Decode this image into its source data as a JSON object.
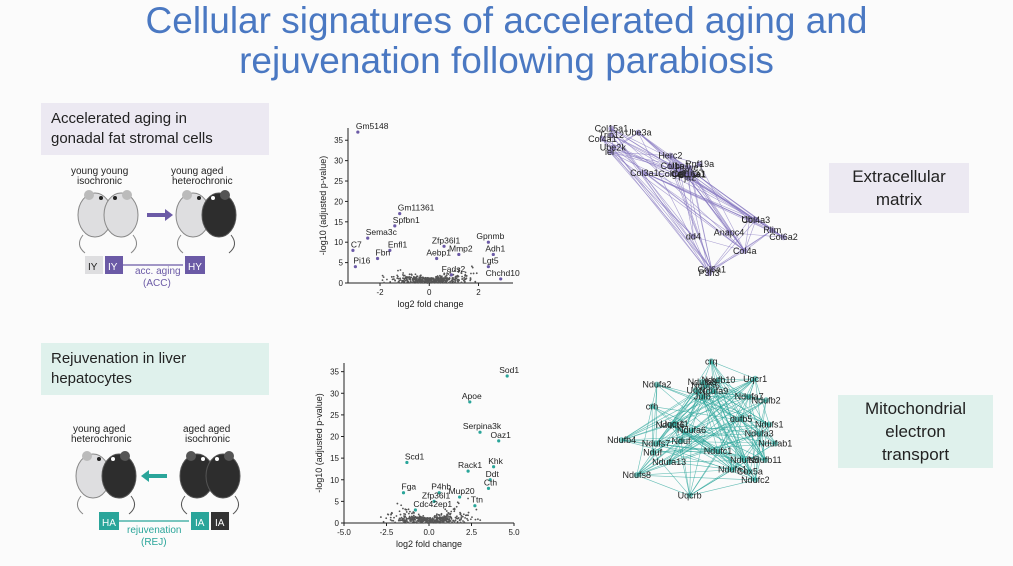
{
  "title": {
    "line1": "Cellular signatures of accelerated aging and",
    "line2": "rejuvenation following parabiosis"
  },
  "top_panel": {
    "heading_line1": "Accelerated aging in",
    "heading_line2": "gonadal fat stromal cells",
    "left_label1": "young  young",
    "left_label2": "isochronic",
    "right_label1": "young  aged",
    "right_label2": "heterochronic",
    "tag_iy1": "IY",
    "tag_iy2": "IY",
    "tag_hy": "HY",
    "flow_label1": "acc. aging",
    "flow_label2": "(ACC)",
    "colors": {
      "accent": "#6b5aa6",
      "light": "#dedee0"
    }
  },
  "bottom_panel": {
    "heading_line1": "Rejuvenation in liver",
    "heading_line2": "hepatocytes",
    "left_label1": "young     aged",
    "left_label2": "heterochronic",
    "right_label1": "aged    aged",
    "right_label2": "isochronic",
    "tag_ha": "HA",
    "tag_ia1": "IA",
    "tag_ia2": "IA",
    "flow_label1": "rejuvenation",
    "flow_label2": "(REJ)",
    "colors": {
      "accent": "#2aa59a",
      "dark": "#333333"
    }
  },
  "labels": {
    "ecm_line1": "Extracellular",
    "ecm_line2": "matrix",
    "mito_line1": "Mitochondrial",
    "mito_line2": "electron",
    "mito_line3": "transport"
  },
  "chart_data": [
    {
      "type": "scatter",
      "xlabel": "log2 fold change",
      "ylabel": "-log10 (adjusted p-value)",
      "xlim": [
        -3.3,
        3.4
      ],
      "ylim": [
        0,
        38
      ],
      "yticks": [
        0,
        5,
        10,
        15,
        20,
        25,
        30,
        35
      ],
      "xticks": [
        -2,
        0,
        2
      ],
      "highlight_color": "#6b5aa6",
      "points": [
        {
          "label": "Gm5148",
          "x": -2.9,
          "y": 37
        },
        {
          "label": "Gm11361",
          "x": -1.2,
          "y": 17
        },
        {
          "label": "Spfbn1",
          "x": -1.4,
          "y": 14
        },
        {
          "label": "Sema3c",
          "x": -2.5,
          "y": 11
        },
        {
          "label": "Enfl1",
          "x": -1.6,
          "y": 8
        },
        {
          "label": "C7",
          "x": -3.1,
          "y": 8
        },
        {
          "label": "Fbn",
          "x": -2.1,
          "y": 6
        },
        {
          "label": "Pi16",
          "x": -3.0,
          "y": 4
        },
        {
          "label": "Zfp36l1",
          "x": 0.6,
          "y": 9
        },
        {
          "label": "Aebp1",
          "x": 0.3,
          "y": 6
        },
        {
          "label": "Mmp2",
          "x": 1.2,
          "y": 7
        },
        {
          "label": "Gpnmb",
          "x": 2.4,
          "y": 10
        },
        {
          "label": "Adh1",
          "x": 2.6,
          "y": 7
        },
        {
          "label": "Lgt5",
          "x": 2.4,
          "y": 4
        },
        {
          "label": "Fads2",
          "x": 0.9,
          "y": 2
        },
        {
          "label": "Chchd10",
          "x": 2.9,
          "y": 1
        }
      ]
    },
    {
      "type": "scatter",
      "xlabel": "log2 fold change",
      "ylabel": "-log10 (adjusted p-value)",
      "xlim": [
        -5.0,
        5.0
      ],
      "ylim": [
        0,
        37
      ],
      "yticks": [
        0,
        5,
        10,
        15,
        20,
        25,
        30,
        35
      ],
      "xticks": [
        -5.0,
        -2.5,
        0.0,
        2.5,
        5.0
      ],
      "xtick_labels": [
        "-5.0",
        "-2.5",
        "0.0",
        "2.5",
        "5.0"
      ],
      "highlight_color": "#2aa59a",
      "points": [
        {
          "label": "Sod1",
          "x": 4.6,
          "y": 34
        },
        {
          "label": "Apoe",
          "x": 2.4,
          "y": 28
        },
        {
          "label": "Serpina3k",
          "x": 3.0,
          "y": 21
        },
        {
          "label": "Oaz1",
          "x": 4.1,
          "y": 19
        },
        {
          "label": "Scd1",
          "x": -1.3,
          "y": 14
        },
        {
          "label": "Rack1",
          "x": 2.3,
          "y": 12
        },
        {
          "label": "Khk",
          "x": 3.8,
          "y": 13
        },
        {
          "label": "Fga",
          "x": -1.5,
          "y": 7
        },
        {
          "label": "Ddt",
          "x": 3.6,
          "y": 10
        },
        {
          "label": "P4hb",
          "x": 0.6,
          "y": 7
        },
        {
          "label": "Mup20",
          "x": 1.8,
          "y": 6
        },
        {
          "label": "Cth",
          "x": 3.5,
          "y": 8
        },
        {
          "label": "Zfp36l1",
          "x": 0.3,
          "y": 5
        },
        {
          "label": "Ttn",
          "x": 2.7,
          "y": 4
        },
        {
          "label": "Cdc42ep1",
          "x": -0.8,
          "y": 3
        }
      ]
    }
  ],
  "networks": {
    "top": {
      "color": "#8677c0",
      "nodes": [
        "Trip12",
        "dd4",
        "Rnf19a",
        "Ube2k",
        "Rlim",
        "Uba1",
        "Herc2",
        "Ube",
        "Pja2",
        "Ube3a",
        "Anapc4",
        "Huwe1",
        "Col3a1",
        "Col6a1",
        "Colgalt1",
        "Col15a1",
        "Col4a3",
        "Col5a2",
        "Col4a1",
        "P3h3",
        "Col1a1",
        "Col1",
        "Col6a2",
        "Col16a1",
        "ier",
        "Col4a"
      ]
    },
    "bottom": {
      "color": "#2aa59a",
      "nodes": [
        "Ndufb4",
        "Ndufc1",
        "Nduf",
        "Ndufa2",
        "Ndufb2",
        "Ndufb10",
        "Ndufs5",
        "Ndufa1",
        "Ndufs7",
        "crh",
        "dufb5",
        "Uqcr",
        "Ndufs8",
        "Jufb",
        "Ndufb6",
        "Ndufs6",
        "Ndufa13",
        "Ndufb8",
        "crq",
        "Uqcrb",
        "Nduf",
        "Ndufa3",
        "Ndufs1",
        "Ndufa7",
        "Ndufa9",
        "Ndufab1",
        "Ndufa6",
        "Uqcr11",
        "Ndufc2",
        "Uqcr1",
        "Ndufb11",
        "Cox5a"
      ]
    }
  }
}
